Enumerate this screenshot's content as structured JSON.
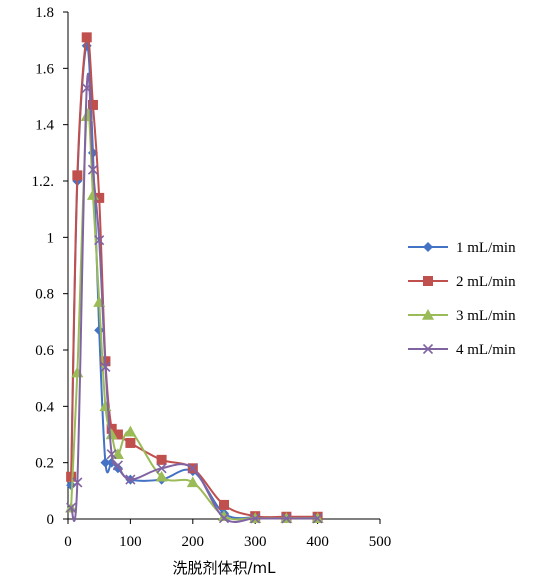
{
  "chart_data": {
    "type": "line",
    "title": "",
    "xlabel": "洗脱剂体积/mL",
    "ylabel": "",
    "xlim": [
      0,
      500
    ],
    "ylim": [
      0,
      1.8
    ],
    "x_ticks": [
      "0",
      "100",
      "200",
      "300",
      "400",
      "500"
    ],
    "y_ticks": [
      "0",
      "0.2",
      "0.4",
      "0.6",
      "0.8",
      "1",
      "1.2.",
      "1.4",
      "1.6",
      "1.8"
    ],
    "grid": false,
    "legend_position": "right",
    "series": [
      {
        "name": "1 mL/min",
        "color": "#4472C4",
        "marker": "diamond",
        "x": [
          5,
          15,
          30,
          40,
          50,
          60,
          70,
          80,
          100,
          150,
          200,
          250,
          300,
          350,
          400
        ],
        "y": [
          0.12,
          1.2,
          1.68,
          1.3,
          0.67,
          0.2,
          0.2,
          0.18,
          0.14,
          0.14,
          0.17,
          0.02,
          0.005,
          0.005,
          0.005
        ]
      },
      {
        "name": "2 mL/min",
        "color": "#C0504D",
        "marker": "square",
        "x": [
          5,
          15,
          30,
          40,
          50,
          60,
          70,
          80,
          100,
          150,
          200,
          250,
          300,
          350,
          400
        ],
        "y": [
          0.15,
          1.22,
          1.71,
          1.47,
          1.14,
          0.56,
          0.32,
          0.3,
          0.27,
          0.21,
          0.18,
          0.05,
          0.01,
          0.008,
          0.008
        ]
      },
      {
        "name": "3 mL/min",
        "color": "#9BBB59",
        "marker": "triangle",
        "x": [
          5,
          15,
          30,
          40,
          50,
          60,
          70,
          80,
          100,
          150,
          200,
          250,
          300,
          350,
          400
        ],
        "y": [
          0.04,
          0.52,
          1.43,
          1.15,
          0.77,
          0.4,
          0.3,
          0.23,
          0.31,
          0.15,
          0.13,
          0.01,
          0.003,
          0.003,
          0.003
        ]
      },
      {
        "name": "4 mL/min",
        "color": "#8064A2",
        "marker": "x",
        "x": [
          5,
          15,
          30,
          40,
          50,
          60,
          70,
          80,
          100,
          150,
          200,
          250,
          300,
          350,
          400
        ],
        "y": [
          0.04,
          0.13,
          1.53,
          1.24,
          0.99,
          0.54,
          0.23,
          0.19,
          0.14,
          0.18,
          0.18,
          0.003,
          0.002,
          0.002,
          0.002
        ]
      }
    ]
  }
}
